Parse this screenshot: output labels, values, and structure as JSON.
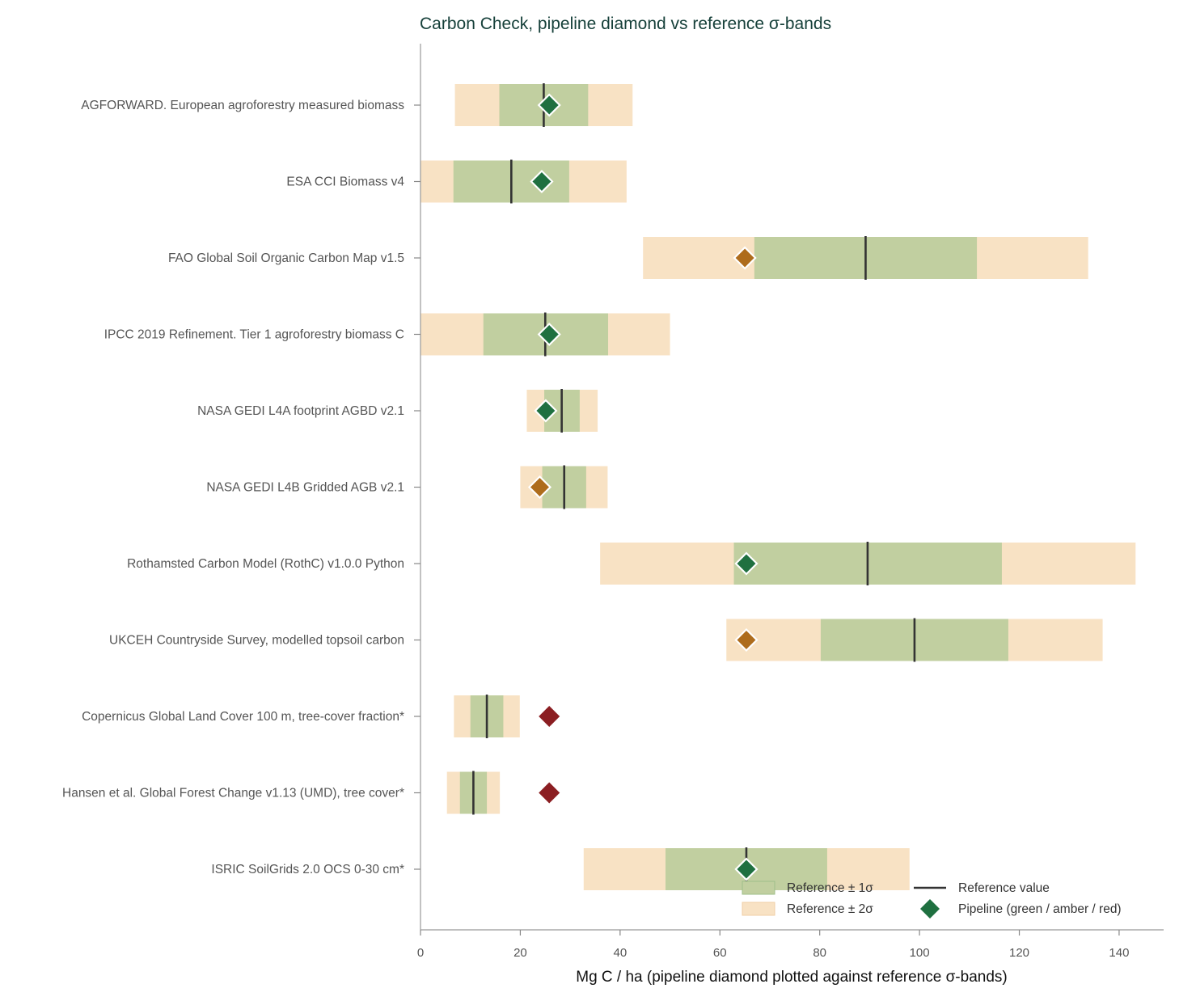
{
  "chart_data": {
    "type": "bar",
    "title": "Carbon Check, pipeline diamond vs reference σ-bands",
    "xlabel": "Mg C / ha (pipeline diamond plotted against reference σ-bands)",
    "ylabel": "",
    "xlim": [
      0,
      149
    ],
    "xticks": [
      0,
      20,
      40,
      60,
      80,
      100,
      120,
      140
    ],
    "grid": false,
    "legend_position": "bottom-right",
    "colors": {
      "band_1sigma": "#c1cfa0",
      "band_2sigma": "#f8e2c4",
      "reference_line": "#333333",
      "green": "#1f7040",
      "amber": "#ae6c1c",
      "red": "#8b1e22",
      "title": "#16403a"
    },
    "categories": [
      "AGFORWARD. European agroforestry measured biomass",
      "ESA CCI Biomass v4",
      "FAO Global Soil Organic Carbon Map v1.5",
      "IPCC 2019 Refinement. Tier 1 agroforestry biomass C",
      "NASA GEDI L4A footprint AGBD v2.1",
      "NASA GEDI L4B Gridded AGB v2.1",
      "Rothamsted Carbon Model (RothC) v1.0.0 Python",
      "UKCEH Countryside Survey, modelled topsoil carbon",
      "Copernicus Global Land Cover 100 m, tree-cover fraction*",
      "Hansen et al. Global Forest Change v1.13 (UMD), tree cover*",
      "ISRIC SoilGrids 2.0 OCS 0-30 cm*"
    ],
    "series": [
      {
        "name": "Reference value",
        "values": [
          24.7,
          18.2,
          89.2,
          25.0,
          28.3,
          28.8,
          89.6,
          99.0,
          13.3,
          10.6,
          65.3
        ]
      },
      {
        "name": "Reference ± 1σ",
        "values": [
          [
            15.8,
            33.6
          ],
          [
            6.6,
            29.8
          ],
          [
            66.9,
            111.5
          ],
          [
            12.6,
            37.6
          ],
          [
            24.8,
            31.9
          ],
          [
            24.4,
            33.2
          ],
          [
            62.8,
            116.5
          ],
          [
            80.2,
            117.8
          ],
          [
            10.0,
            16.6
          ],
          [
            7.9,
            13.3
          ],
          [
            49.1,
            81.5
          ]
        ]
      },
      {
        "name": "Reference ± 2σ",
        "values": [
          [
            6.9,
            42.5
          ],
          [
            0.0,
            41.3
          ],
          [
            44.6,
            133.8
          ],
          [
            0.0,
            50.0
          ],
          [
            21.3,
            35.5
          ],
          [
            20.0,
            37.5
          ],
          [
            36.0,
            143.3
          ],
          [
            61.3,
            136.7
          ],
          [
            6.7,
            19.9
          ],
          [
            5.3,
            15.9
          ],
          [
            32.7,
            98.0
          ]
        ]
      },
      {
        "name": "Pipeline (green / amber / red)",
        "values": [
          25.8,
          24.3,
          65.0,
          25.8,
          25.1,
          23.9,
          65.3,
          65.3,
          25.8,
          25.8,
          65.3
        ],
        "status": [
          "green",
          "green",
          "amber",
          "green",
          "green",
          "amber",
          "green",
          "amber",
          "red",
          "red",
          "green"
        ]
      }
    ],
    "legend": [
      {
        "label": "Reference ± 1σ",
        "kind": "band1"
      },
      {
        "label": "Reference ± 2σ",
        "kind": "band2"
      },
      {
        "label": "Reference value",
        "kind": "line"
      },
      {
        "label": "Pipeline (green / amber / red)",
        "kind": "diamond"
      }
    ]
  }
}
